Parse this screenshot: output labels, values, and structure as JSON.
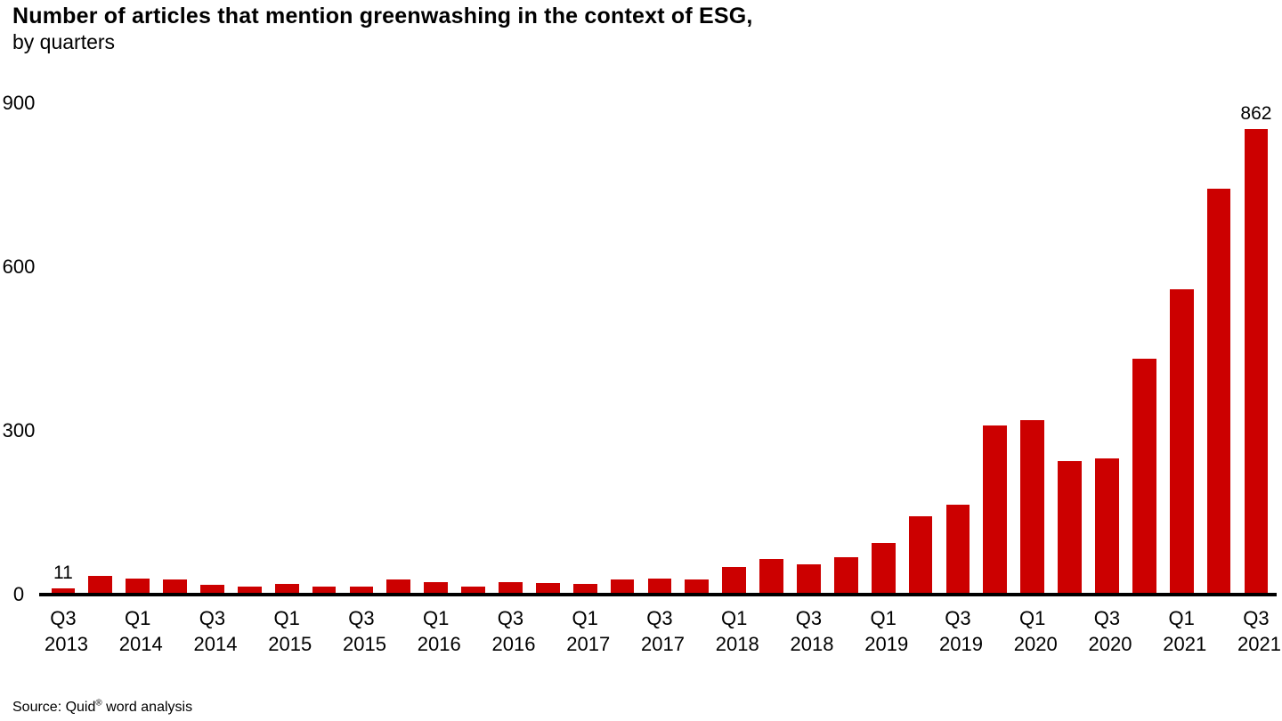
{
  "header": {
    "title": "Number of articles that mention greenwashing in the context of ESG,",
    "subtitle": "by quarters"
  },
  "footer": {
    "source_prefix": "Source: Quid",
    "source_sup": "®",
    "source_suffix": " word analysis"
  },
  "chart_data": {
    "type": "bar",
    "title": "Number of articles that mention greenwashing in the context of ESG, by quarters",
    "xlabel": "",
    "ylabel": "",
    "ylim": [
      0,
      900
    ],
    "yticks": [
      0,
      300,
      600,
      900
    ],
    "grid": false,
    "legend": "none",
    "bar_color": "#cc0000",
    "axis_color": "#000000",
    "categories": [
      "Q3 2013",
      "Q4 2013",
      "Q1 2014",
      "Q2 2014",
      "Q3 2014",
      "Q4 2014",
      "Q1 2015",
      "Q2 2015",
      "Q3 2015",
      "Q4 2015",
      "Q1 2016",
      "Q2 2016",
      "Q3 2016",
      "Q4 2016",
      "Q1 2017",
      "Q2 2017",
      "Q3 2017",
      "Q4 2017",
      "Q1 2018",
      "Q2 2018",
      "Q3 2018",
      "Q4 2018",
      "Q1 2019",
      "Q2 2019",
      "Q3 2019",
      "Q4 2019",
      "Q1 2020",
      "Q2 2020",
      "Q3 2020",
      "Q4 2020",
      "Q1 2021",
      "Q2 2021",
      "Q3 2021"
    ],
    "values": [
      11,
      35,
      30,
      28,
      18,
      14,
      20,
      14,
      15,
      28,
      23,
      14,
      23,
      22,
      20,
      27,
      30,
      27,
      50,
      66,
      55,
      68,
      95,
      143,
      165,
      310,
      320,
      245,
      250,
      432,
      560,
      743,
      862
    ],
    "x_tick_every": 2,
    "labeled_points": [
      {
        "index": 0,
        "label": "11"
      },
      {
        "index": 32,
        "label": "862"
      }
    ]
  }
}
